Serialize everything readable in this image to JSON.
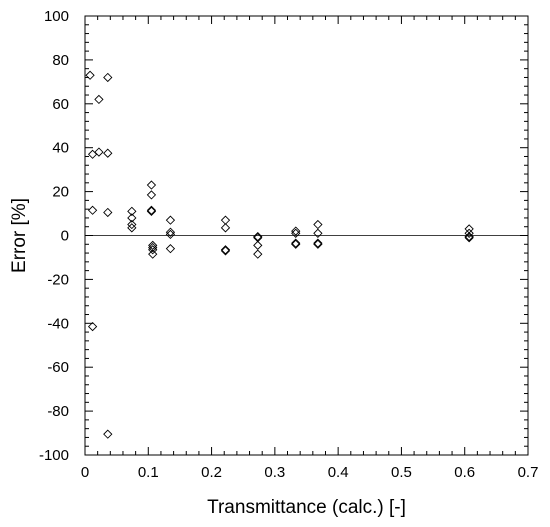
{
  "chart_data": {
    "type": "scatter",
    "title": "",
    "xlabel": "Transmittance (calc.) [-]",
    "ylabel": "Error [%]",
    "xlim": [
      0,
      0.7
    ],
    "ylim": [
      -100,
      100
    ],
    "x_major_ticks": [
      0,
      0.1,
      0.2,
      0.3,
      0.4,
      0.5,
      0.6,
      0.7
    ],
    "x_tick_labels": [
      "0",
      "0.1",
      "0.2",
      "0.3",
      "0.4",
      "0.5",
      "0.6",
      "0.7"
    ],
    "y_major_ticks": [
      -100,
      -80,
      -60,
      -40,
      -20,
      0,
      20,
      40,
      60,
      80,
      100
    ],
    "y_tick_labels": [
      "-100",
      "-80",
      "-60",
      "-40",
      "-20",
      "0",
      "20",
      "40",
      "60",
      "80",
      "100"
    ],
    "x_minor_step": 0.02,
    "y_minor_step": 4,
    "zero_line": true,
    "grid": false,
    "legend": "none",
    "marker": "diamond-open",
    "points": [
      {
        "x": 0.008,
        "y": 73
      },
      {
        "x": 0.012,
        "y": 37
      },
      {
        "x": 0.012,
        "y": 11.5
      },
      {
        "x": 0.012,
        "y": -41.5
      },
      {
        "x": 0.022,
        "y": 62
      },
      {
        "x": 0.022,
        "y": 38
      },
      {
        "x": 0.036,
        "y": 72
      },
      {
        "x": 0.036,
        "y": 37.5
      },
      {
        "x": 0.036,
        "y": 10.5
      },
      {
        "x": 0.036,
        "y": -90.5
      },
      {
        "x": 0.074,
        "y": 11
      },
      {
        "x": 0.074,
        "y": 8
      },
      {
        "x": 0.074,
        "y": 5
      },
      {
        "x": 0.074,
        "y": 3.5
      },
      {
        "x": 0.105,
        "y": 23
      },
      {
        "x": 0.105,
        "y": 18.5
      },
      {
        "x": 0.105,
        "y": 11.5
      },
      {
        "x": 0.105,
        "y": 11
      },
      {
        "x": 0.107,
        "y": -4.5
      },
      {
        "x": 0.107,
        "y": -5.5
      },
      {
        "x": 0.107,
        "y": -6.5
      },
      {
        "x": 0.107,
        "y": -8.5
      },
      {
        "x": 0.135,
        "y": 7
      },
      {
        "x": 0.135,
        "y": 1.5
      },
      {
        "x": 0.135,
        "y": 0.5
      },
      {
        "x": 0.135,
        "y": -6
      },
      {
        "x": 0.222,
        "y": 7
      },
      {
        "x": 0.222,
        "y": 3.5
      },
      {
        "x": 0.222,
        "y": -6.5
      },
      {
        "x": 0.222,
        "y": -7
      },
      {
        "x": 0.273,
        "y": -0.5
      },
      {
        "x": 0.273,
        "y": -1
      },
      {
        "x": 0.273,
        "y": -4.5
      },
      {
        "x": 0.273,
        "y": -8.5
      },
      {
        "x": 0.333,
        "y": 2
      },
      {
        "x": 0.333,
        "y": 1
      },
      {
        "x": 0.333,
        "y": -3.5
      },
      {
        "x": 0.333,
        "y": -4
      },
      {
        "x": 0.368,
        "y": 5
      },
      {
        "x": 0.368,
        "y": 1
      },
      {
        "x": 0.368,
        "y": -3.5
      },
      {
        "x": 0.368,
        "y": -4
      },
      {
        "x": 0.607,
        "y": 3
      },
      {
        "x": 0.607,
        "y": 1
      },
      {
        "x": 0.607,
        "y": -0.5
      },
      {
        "x": 0.607,
        "y": -1
      }
    ]
  }
}
